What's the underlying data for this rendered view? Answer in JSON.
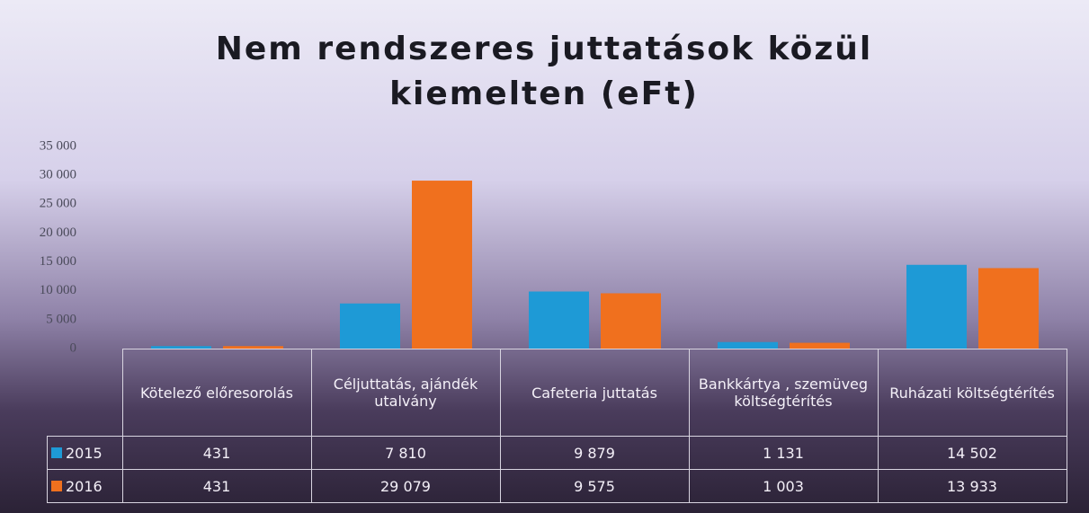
{
  "chart_data": {
    "type": "bar",
    "title": "Nem rendszeres juttatások közül kiemelten (eFt)",
    "categories": [
      "Kötelező előresorolás",
      "Céljuttatás, ajándék utalvány",
      "Cafeteria juttatás",
      "Bankkártya , szemüveg költségtérítés",
      "Ruházati költségtérítés"
    ],
    "series": [
      {
        "name": "2015",
        "color": "#1e9ad6",
        "values": [
          431,
          7810,
          9879,
          1131,
          14502
        ],
        "value_labels": [
          "431",
          "7 810",
          "9 879",
          "1 131",
          "14 502"
        ]
      },
      {
        "name": "2016",
        "color": "#f0701e",
        "values": [
          431,
          29079,
          9575,
          1003,
          13933
        ],
        "value_labels": [
          "431",
          "29 079",
          "9 575",
          "1 003",
          "13 933"
        ]
      }
    ],
    "ylim": [
      0,
      35000
    ],
    "yticks": [
      0,
      {
        "value": 5000,
        "label": "5 000"
      },
      {
        "value": 10000,
        "label": "10 000"
      },
      {
        "value": 15000,
        "label": "15 000"
      },
      {
        "value": 20000,
        "label": "20 000"
      },
      {
        "value": 25000,
        "label": "25 000"
      },
      {
        "value": 30000,
        "label": "30 000"
      },
      {
        "value": 35000,
        "label": "35 000"
      }
    ],
    "grid": false
  }
}
